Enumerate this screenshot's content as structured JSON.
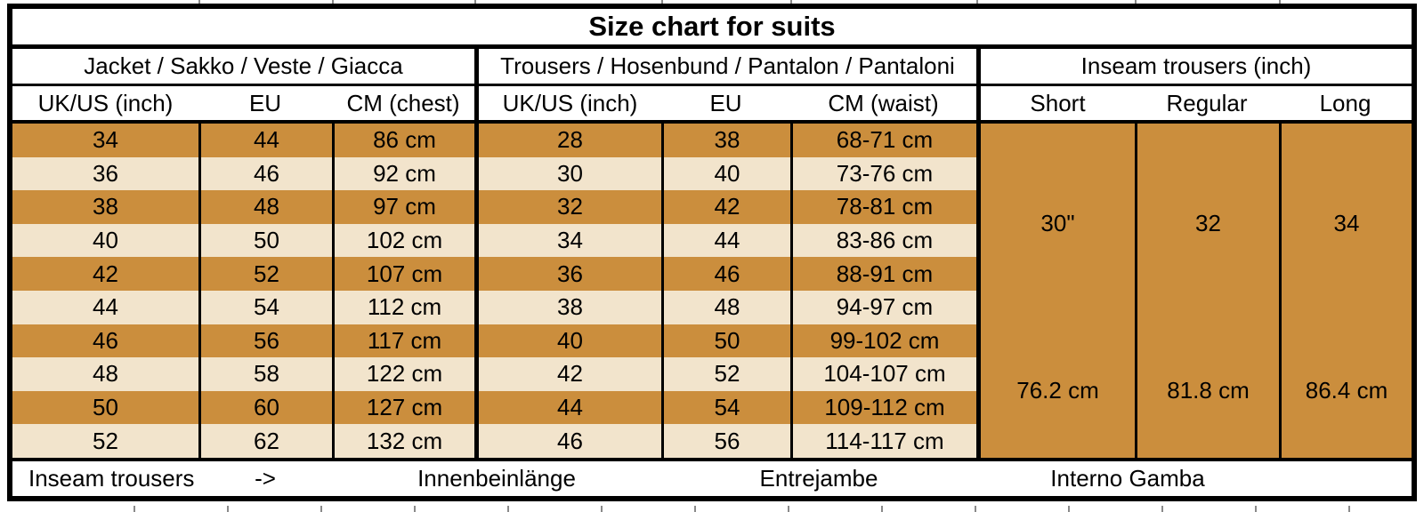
{
  "title": "Size chart for suits",
  "sections": {
    "jacket": {
      "header": "Jacket / Sakko / Veste / Giacca",
      "columns": [
        "UK/US (inch)",
        "EU",
        "CM (chest)"
      ]
    },
    "trousers": {
      "header": "Trousers / Hosenbund / Pantalon / Pantaloni",
      "columns": [
        "UK/US (inch)",
        "EU",
        "CM (waist)"
      ]
    },
    "inseam": {
      "header": "Inseam trousers (inch)",
      "columns": [
        "Short",
        "Regular",
        "Long"
      ]
    }
  },
  "rows": [
    {
      "jacket": [
        "34",
        "44",
        "86 cm"
      ],
      "trousers": [
        "28",
        "38",
        "68-71 cm"
      ]
    },
    {
      "jacket": [
        "36",
        "46",
        "92 cm"
      ],
      "trousers": [
        "30",
        "40",
        "73-76 cm"
      ]
    },
    {
      "jacket": [
        "38",
        "48",
        "97 cm"
      ],
      "trousers": [
        "32",
        "42",
        "78-81 cm"
      ]
    },
    {
      "jacket": [
        "40",
        "50",
        "102 cm"
      ],
      "trousers": [
        "34",
        "44",
        "83-86 cm"
      ]
    },
    {
      "jacket": [
        "42",
        "52",
        "107 cm"
      ],
      "trousers": [
        "36",
        "46",
        "88-91 cm"
      ]
    },
    {
      "jacket": [
        "44",
        "54",
        "112 cm"
      ],
      "trousers": [
        "38",
        "48",
        "94-97 cm"
      ]
    },
    {
      "jacket": [
        "46",
        "56",
        "117 cm"
      ],
      "trousers": [
        "40",
        "50",
        "99-102 cm"
      ]
    },
    {
      "jacket": [
        "48",
        "58",
        "122 cm"
      ],
      "trousers": [
        "42",
        "52",
        "104-107 cm"
      ]
    },
    {
      "jacket": [
        "50",
        "60",
        "127 cm"
      ],
      "trousers": [
        "44",
        "54",
        "109-112 cm"
      ]
    },
    {
      "jacket": [
        "52",
        "62",
        "132 cm"
      ],
      "trousers": [
        "46",
        "56",
        "114-117 cm"
      ]
    }
  ],
  "inseam": {
    "short": {
      "inch": "30\"",
      "cm": "76.2 cm"
    },
    "regular": {
      "inch": "32",
      "cm": "81.8 cm"
    },
    "long": {
      "inch": "34",
      "cm": "86.4 cm"
    }
  },
  "footer": {
    "label": "Inseam trousers",
    "arrow": "->",
    "german": "Innenbeinlänge",
    "french": "Entrejambe",
    "italian": "Interno Gamba"
  },
  "colors": {
    "row_orange": "#CB8E3D",
    "row_cream": "#F2E4CC",
    "border": "#000000"
  }
}
